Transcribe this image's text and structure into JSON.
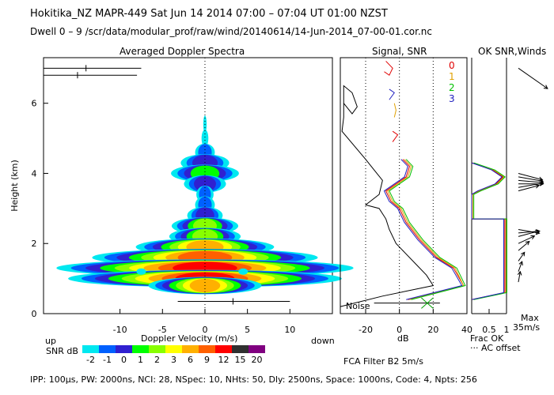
{
  "header": {
    "line1": "Hokitika_NZ   MAPR-449   Sat Jun 14 2014 07:00 – 07:04 UT 01:00 NZST",
    "line2": "Dwell   0  –   9    /scr/data/modular_prof/raw/wind/20140614/14-Jun-2014_07-00-01.cor.nc"
  },
  "panels": {
    "spectra_title": "Averaged Doppler Spectra",
    "signal_title": "Signal, SNR",
    "winds_title": "OK SNR,Winds",
    "ylabel": "Height (km)",
    "xlabel": "Doppler Velocity (m/s)",
    "up_label": "up",
    "down_label": "down",
    "db_label": "dB",
    "noise_label": "Noise",
    "frac_ok_label": "Frac OK",
    "ac_offset_label": "··· AC offset",
    "max_label": "Max",
    "max_value": "35m/s"
  },
  "dwell_legend": [
    {
      "label": "0",
      "color": "#e00000"
    },
    {
      "label": "1",
      "color": "#e0a000"
    },
    {
      "label": "2",
      "color": "#00c000"
    },
    {
      "label": "3",
      "color": "#2020c0"
    }
  ],
  "colorbar": {
    "label": "SNR dB",
    "ticks": [
      "-2",
      "-1",
      "0",
      "1",
      "2",
      "3",
      "6",
      "9",
      "12",
      "15",
      "20"
    ],
    "colors": [
      "#00e8f0",
      "#0060ff",
      "#3020d0",
      "#00ff00",
      "#88ff00",
      "#ffff00",
      "#ffb000",
      "#ff6000",
      "#ff0000",
      "#303030",
      "#800080"
    ]
  },
  "footer": {
    "filter": "FCA Filter B2   5m/s",
    "params": "IPP: 100µs,   PW: 2000ns,   NCI: 28,   NSpec: 10,  NHts: 50,   Dly: 2500ns,   Space: 1000ns,   Code: 4,   Npts: 256"
  },
  "chart_data": [
    {
      "type": "heatmap",
      "title": "Averaged Doppler Spectra",
      "xlabel": "Doppler Velocity (m/s)",
      "ylabel": "Height (km)",
      "xlim": [
        -19,
        15
      ],
      "ylim": [
        0,
        7.3
      ],
      "xticks": [
        -10,
        -5,
        0,
        5,
        10
      ],
      "yticks": [
        0,
        2,
        4,
        6
      ],
      "profile": [
        {
          "h": 5.4,
          "w": 0.2,
          "c": 0
        },
        {
          "h": 5.0,
          "w": 0.4,
          "c": 0
        },
        {
          "h": 4.6,
          "w": 0.8,
          "c": 1
        },
        {
          "h": 4.3,
          "w": 1.5,
          "c": 2
        },
        {
          "h": 4.0,
          "w": 1.7,
          "c": 3
        },
        {
          "h": 3.7,
          "w": 1.3,
          "c": 2
        },
        {
          "h": 3.4,
          "w": 0.7,
          "c": 1
        },
        {
          "h": 3.1,
          "w": 0.8,
          "c": 1
        },
        {
          "h": 2.8,
          "w": 1.1,
          "c": 2
        },
        {
          "h": 2.5,
          "w": 1.4,
          "c": 4
        },
        {
          "h": 2.2,
          "w": 1.5,
          "c": 4
        },
        {
          "h": 1.9,
          "w": 2.2,
          "c": 6
        },
        {
          "h": 1.6,
          "w": 3.2,
          "c": 7
        },
        {
          "h": 1.3,
          "w": 3.8,
          "c": 8
        },
        {
          "h": 1.0,
          "w": 3.5,
          "c": 8
        },
        {
          "h": 0.8,
          "w": 1.8,
          "c": 6
        }
      ],
      "side_blobs": [
        {
          "h": 1.2,
          "v": -7.5
        },
        {
          "h": 1.2,
          "v": 4.5
        }
      ],
      "error_bars": [
        {
          "h": 7.0,
          "v0": -19,
          "v1": -7.5,
          "tick": -14
        },
        {
          "h": 6.8,
          "v0": -19,
          "v1": -8.0,
          "tick": -15
        },
        {
          "h": 0.35,
          "v0": -3.2,
          "v1": 10,
          "tick": 3.3
        }
      ]
    },
    {
      "type": "line",
      "title": "Signal, SNR",
      "xlabel": "dB",
      "xlim": [
        -35,
        40
      ],
      "xticks": [
        -20,
        0,
        20,
        40
      ],
      "ac_offsets": [
        -20,
        0,
        20
      ],
      "noise": [
        [
          -15,
          0.3
        ],
        [
          14,
          0.3
        ],
        [
          24,
          0.3
        ]
      ],
      "signal": [
        [
          -33,
          6.0
        ],
        [
          -28,
          5.7
        ],
        [
          -25,
          5.9
        ],
        [
          -28,
          6.3
        ],
        [
          -33,
          6.5
        ],
        [
          -33,
          5.6
        ],
        [
          -34,
          5.2
        ],
        [
          -20,
          4.4
        ],
        [
          -15,
          4.1
        ],
        [
          -10,
          3.8
        ],
        [
          -12,
          3.4
        ],
        [
          -20,
          3.1
        ],
        [
          -12,
          3.0
        ],
        [
          -8,
          2.7
        ],
        [
          -6,
          2.4
        ],
        [
          -2,
          2.0
        ],
        [
          4,
          1.7
        ],
        [
          10,
          1.4
        ],
        [
          16,
          1.1
        ],
        [
          20,
          0.8
        ],
        [
          -10,
          0.5
        ],
        [
          -35,
          0.2
        ]
      ],
      "series": [
        {
          "name": "0",
          "points": [
            [
              2,
              4.4
            ],
            [
              6,
              4.2
            ],
            [
              4,
              3.9
            ],
            [
              -8,
              3.5
            ],
            [
              -5,
              3.2
            ],
            [
              0,
              3.0
            ],
            [
              4,
              2.6
            ],
            [
              12,
              2.1
            ],
            [
              22,
              1.6
            ],
            [
              32,
              1.3
            ],
            [
              38,
              0.8
            ],
            [
              5,
              0.4
            ]
          ]
        },
        {
          "name": "1",
          "points": [
            [
              3,
              4.4
            ],
            [
              7,
              4.2
            ],
            [
              5,
              3.9
            ],
            [
              -7,
              3.5
            ],
            [
              -4,
              3.2
            ],
            [
              1,
              3.0
            ],
            [
              5,
              2.6
            ],
            [
              13,
              2.1
            ],
            [
              23,
              1.6
            ],
            [
              33,
              1.3
            ],
            [
              38,
              0.8
            ],
            [
              6,
              0.4
            ]
          ]
        },
        {
          "name": "2",
          "points": [
            [
              4,
              4.4
            ],
            [
              8,
              4.2
            ],
            [
              6,
              3.9
            ],
            [
              -6,
              3.5
            ],
            [
              -3,
              3.2
            ],
            [
              2,
              3.0
            ],
            [
              6,
              2.6
            ],
            [
              14,
              2.1
            ],
            [
              24,
              1.6
            ],
            [
              34,
              1.3
            ],
            [
              39,
              0.8
            ],
            [
              7,
              0.4
            ]
          ]
        },
        {
          "name": "3",
          "points": [
            [
              1,
              4.4
            ],
            [
              5,
              4.2
            ],
            [
              3,
              3.9
            ],
            [
              -9,
              3.5
            ],
            [
              -6,
              3.2
            ],
            [
              -1,
              3.0
            ],
            [
              3,
              2.6
            ],
            [
              11,
              2.1
            ],
            [
              21,
              1.6
            ],
            [
              31,
              1.3
            ],
            [
              37,
              0.8
            ],
            [
              4,
              0.4
            ]
          ]
        }
      ],
      "upper_fragments": [
        {
          "color": "#e00000",
          "points": [
            [
              -8,
              7.2
            ],
            [
              -4,
              7.0
            ],
            [
              -6,
              6.8
            ],
            [
              -9,
              6.9
            ]
          ]
        },
        {
          "color": "#2020c0",
          "points": [
            [
              -6,
              6.4
            ],
            [
              -3,
              6.3
            ],
            [
              -6,
              6.1
            ]
          ]
        },
        {
          "color": "#e0a000",
          "points": [
            [
              -3,
              6.0
            ],
            [
              -2,
              5.8
            ],
            [
              -3,
              5.6
            ]
          ]
        },
        {
          "color": "#e00000",
          "points": [
            [
              -4,
              5.2
            ],
            [
              -1,
              5.1
            ],
            [
              -4,
              4.9
            ]
          ]
        }
      ]
    },
    {
      "type": "line",
      "title": "OK SNR,Winds",
      "xlabel": "Frac OK",
      "xlim": [
        0,
        1
      ],
      "xticks": [
        0.5,
        1
      ],
      "frac_ok": [
        [
          0.0,
          4.3
        ],
        [
          0.6,
          4.1
        ],
        [
          0.9,
          3.9
        ],
        [
          0.7,
          3.7
        ],
        [
          0.2,
          3.5
        ],
        [
          0.0,
          3.4
        ],
        [
          0.0,
          2.7
        ],
        [
          0.95,
          2.7
        ],
        [
          0.95,
          0.6
        ],
        [
          0.0,
          0.4
        ]
      ],
      "winds": [
        {
          "h": 7.0,
          "dir": -35,
          "len": 1.0
        },
        {
          "h": 4.0,
          "dir": -15,
          "len": 0.7
        },
        {
          "h": 3.9,
          "dir": -10,
          "len": 0.7
        },
        {
          "h": 3.8,
          "dir": -5,
          "len": 0.7
        },
        {
          "h": 3.7,
          "dir": 0,
          "len": 0.7
        },
        {
          "h": 3.6,
          "dir": 10,
          "len": 0.7
        },
        {
          "h": 3.5,
          "dir": 15,
          "len": 0.6
        },
        {
          "h": 2.4,
          "dir": -10,
          "len": 0.6
        },
        {
          "h": 2.3,
          "dir": 5,
          "len": 0.6
        },
        {
          "h": 2.2,
          "dir": 15,
          "len": 0.6
        },
        {
          "h": 2.0,
          "dir": 25,
          "len": 0.5
        },
        {
          "h": 1.8,
          "dir": 40,
          "len": 0.4
        },
        {
          "h": 1.5,
          "dir": 55,
          "len": 0.3
        },
        {
          "h": 1.2,
          "dir": 70,
          "len": 0.3
        },
        {
          "h": 0.9,
          "dir": 80,
          "len": 0.3
        }
      ]
    }
  ]
}
